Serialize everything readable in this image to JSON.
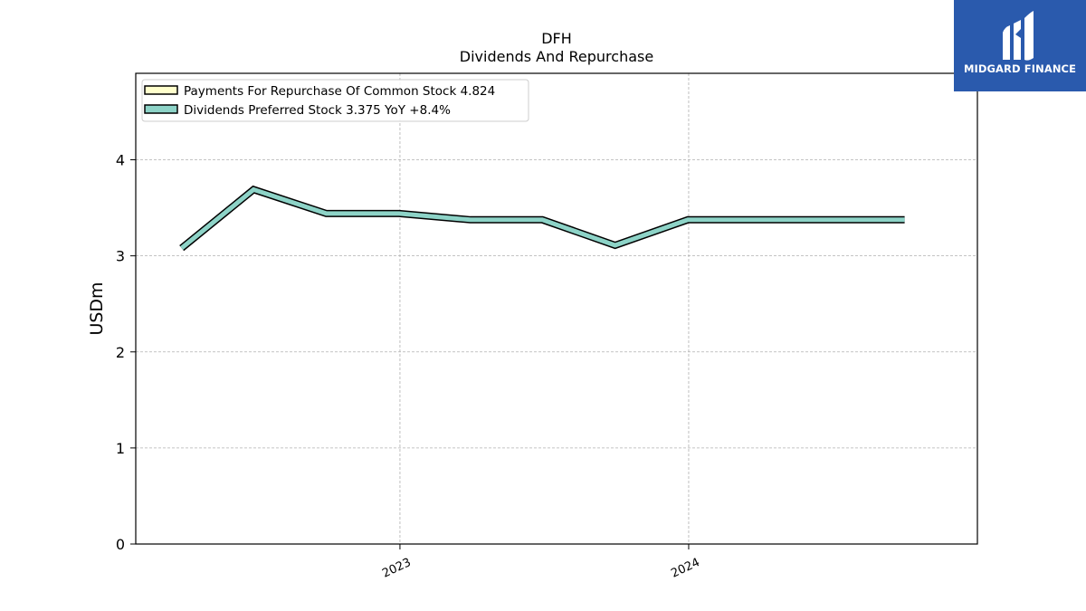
{
  "chart_data": {
    "type": "line",
    "title": "DFH",
    "subtitle": "Dividends And Repurchase",
    "ylabel": "USDm",
    "xlabel": "",
    "ylim": [
      0,
      4.9
    ],
    "yticks": [
      0,
      1,
      2,
      3,
      4
    ],
    "xlim": [
      "2022-02-01",
      "2024-12-31"
    ],
    "xticks": [
      {
        "label": "2023",
        "date": "2023-01-01"
      },
      {
        "label": "2024",
        "date": "2024-01-01"
      }
    ],
    "grid": true,
    "legend_position": "top-left",
    "legend": [
      {
        "label": "Payments For Repurchase Of Common Stock  4.824",
        "color": "#ffffcc"
      },
      {
        "label": "Dividends Preferred Stock  3.375 YoY +8.4%",
        "color": "#8dd3c7"
      }
    ],
    "series": [
      {
        "name": "Dividends Preferred Stock",
        "color": "#8dd3c7",
        "points": [
          {
            "date": "2022-03-31",
            "value": 3.08
          },
          {
            "date": "2022-06-30",
            "value": 3.69
          },
          {
            "date": "2022-09-30",
            "value": 3.44
          },
          {
            "date": "2022-12-31",
            "value": 3.44
          },
          {
            "date": "2023-03-31",
            "value": 3.375
          },
          {
            "date": "2023-06-30",
            "value": 3.375
          },
          {
            "date": "2023-09-30",
            "value": 3.11
          },
          {
            "date": "2023-12-31",
            "value": 3.375
          },
          {
            "date": "2024-03-31",
            "value": 3.375
          },
          {
            "date": "2024-06-30",
            "value": 3.375
          },
          {
            "date": "2024-09-30",
            "value": 3.375
          }
        ]
      }
    ]
  },
  "logo": {
    "text": "MIDGARD FINANCE",
    "color": "#2a5aad"
  }
}
